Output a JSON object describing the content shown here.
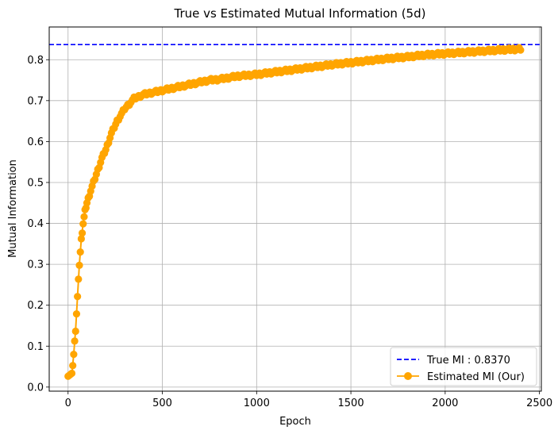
{
  "chart_data": {
    "type": "line",
    "title": "True vs Estimated Mutual Information (5d)",
    "xlabel": "Epoch",
    "ylabel": "Mutual Information",
    "xlim": [
      -100,
      2510
    ],
    "ylim": [
      -0.01,
      0.88
    ],
    "xticks": [
      0,
      500,
      1000,
      1500,
      2000,
      2500
    ],
    "yticks": [
      0.0,
      0.1,
      0.2,
      0.3,
      0.4,
      0.5,
      0.6,
      0.7,
      0.8
    ],
    "ytick_labels": [
      "0.0",
      "0.1",
      "0.2",
      "0.3",
      "0.4",
      "0.5",
      "0.6",
      "0.7",
      "0.8"
    ],
    "grid": true,
    "legend_position": "lower-right",
    "reference_line": {
      "label": "True MI : 0.8370",
      "value": 0.837,
      "style": "dashed",
      "color": "#0000ff"
    },
    "series": [
      {
        "name": "Estimated MI (Our)",
        "color": "#ffa500",
        "marker": "circle",
        "x": [
          0,
          20,
          30,
          40,
          50,
          60,
          70,
          80,
          90,
          100,
          120,
          150,
          180,
          200,
          230,
          260,
          300,
          350,
          400,
          450,
          500,
          550,
          600,
          650,
          700,
          750,
          800,
          850,
          900,
          950,
          1000,
          1100,
          1200,
          1300,
          1400,
          1500,
          1600,
          1700,
          1800,
          1900,
          2000,
          2100,
          2200,
          2300,
          2400
        ],
        "values": [
          0.03,
          0.03,
          0.08,
          0.14,
          0.22,
          0.3,
          0.36,
          0.4,
          0.43,
          0.45,
          0.48,
          0.52,
          0.56,
          0.58,
          0.62,
          0.65,
          0.68,
          0.705,
          0.715,
          0.72,
          0.725,
          0.73,
          0.735,
          0.74,
          0.745,
          0.75,
          0.752,
          0.756,
          0.76,
          0.762,
          0.764,
          0.77,
          0.776,
          0.782,
          0.788,
          0.793,
          0.798,
          0.803,
          0.807,
          0.812,
          0.815,
          0.818,
          0.821,
          0.824,
          0.826
        ]
      }
    ]
  }
}
